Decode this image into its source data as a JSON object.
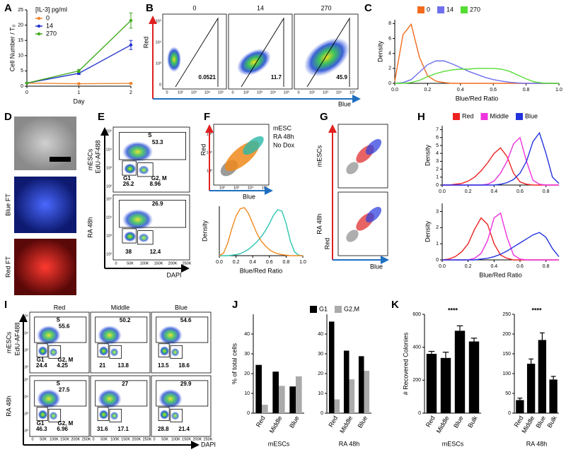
{
  "panel_labels": [
    "A",
    "B",
    "C",
    "D",
    "E",
    "F",
    "G",
    "H",
    "I",
    "J",
    "K"
  ],
  "chart_data": [
    {
      "type": "line",
      "ylabel": "Cell Number / T₀",
      "xlabel": "Day",
      "legend": "upper-left",
      "legend_title": "[IL-3] pg/ml",
      "markers": true,
      "x": [
        0,
        1,
        2
      ],
      "xlim": [
        0,
        2
      ],
      "xticks": [
        0,
        1,
        2
      ],
      "ylim": [
        0,
        25
      ],
      "yticks": [
        0,
        5,
        10,
        15,
        20,
        25
      ],
      "series": [
        {
          "name": "0",
          "color": "#f0852d",
          "values": [
            1,
            0.8,
            0.9
          ],
          "errors": [
            0.1,
            0.1,
            0.1
          ]
        },
        {
          "name": "14",
          "color": "#2233cc",
          "values": [
            1,
            4.2,
            13.5
          ],
          "errors": [
            0.1,
            0.4,
            1.5
          ]
        },
        {
          "name": "270",
          "color": "#44aa22",
          "values": [
            1,
            5,
            21.5
          ],
          "errors": [
            0.1,
            0.5,
            2.5
          ]
        }
      ]
    },
    {
      "type": "line",
      "ylabel": "Density",
      "xlabel": "Blue/Red Ratio",
      "legend": "top",
      "x": [
        0,
        0.05,
        0.1,
        0.15,
        0.2,
        0.25,
        0.3,
        0.35,
        0.4,
        0.45,
        0.5,
        0.55,
        0.6,
        0.65,
        0.7,
        0.75,
        0.8,
        0.85,
        0.9,
        0.95,
        1
      ],
      "xlim": [
        0,
        1
      ],
      "xticks": [
        {
          "value": 0,
          "label": "0.0"
        },
        0.2,
        0.4,
        0.6,
        0.8,
        {
          "value": 1,
          "label": "1.0"
        }
      ],
      "ylim": [
        0,
        8.5
      ],
      "yticks": [
        0,
        2,
        4,
        6,
        8
      ],
      "series": [
        {
          "name": "0",
          "color": "#f26b1d",
          "values": [
            0.3,
            6.5,
            7.9,
            3.5,
            1.0,
            0.3,
            0.1,
            0,
            0,
            0,
            0,
            0,
            0,
            0,
            0,
            0,
            0,
            0,
            0,
            0,
            0
          ]
        },
        {
          "name": "14",
          "color": "#6f6fee",
          "values": [
            0,
            0.1,
            0.5,
            1.5,
            2.5,
            3.0,
            3.0,
            2.6,
            2.1,
            1.6,
            1.2,
            0.8,
            0.5,
            0.3,
            0.15,
            0.05,
            0,
            0,
            0,
            0,
            0
          ]
        },
        {
          "name": "270",
          "color": "#55dd33",
          "values": [
            0,
            0,
            0.1,
            0.4,
            0.9,
            1.3,
            1.6,
            1.8,
            1.9,
            1.9,
            2.0,
            2.0,
            2.0,
            1.9,
            1.6,
            1.1,
            0.6,
            0.2,
            0.05,
            0,
            0
          ]
        }
      ]
    },
    {
      "type": "line",
      "ylabel": "Density",
      "xlabel": "Blue/Red Ratio",
      "x": [
        0,
        0.05,
        0.1,
        0.15,
        0.2,
        0.25,
        0.3,
        0.35,
        0.4,
        0.45,
        0.5,
        0.55,
        0.6,
        0.65,
        0.7,
        0.75,
        0.8,
        0.85,
        0.9,
        0.95,
        1
      ],
      "xlim": [
        0,
        1
      ],
      "xticks": [
        {
          "value": 0,
          "label": "0.0"
        },
        0.2,
        0.4,
        0.6,
        0.8,
        {
          "value": 1,
          "label": "1.0"
        }
      ],
      "ylim": [
        0,
        1
      ],
      "series": [
        {
          "color": "#2ec4b0",
          "values": [
            0,
            0,
            0,
            0.01,
            0.02,
            0.04,
            0.08,
            0.13,
            0.2,
            0.28,
            0.38,
            0.5,
            0.65,
            0.82,
            0.93,
            0.9,
            0.65,
            0.3,
            0.08,
            0.01,
            0
          ]
        },
        {
          "color": "#f08a1c",
          "values": [
            0,
            0.05,
            0.25,
            0.55,
            0.8,
            0.95,
            0.97,
            0.85,
            0.65,
            0.45,
            0.3,
            0.2,
            0.12,
            0.07,
            0.04,
            0.02,
            0.01,
            0,
            0,
            0,
            0
          ]
        }
      ]
    },
    {
      "type": "line",
      "ylabel": "Density",
      "legend": "top",
      "x": [
        0,
        0.05,
        0.1,
        0.15,
        0.2,
        0.25,
        0.3,
        0.35,
        0.4,
        0.45,
        0.5,
        0.55,
        0.6,
        0.65,
        0.7,
        0.75,
        0.8,
        0.85,
        0.9
      ],
      "xlim": [
        0,
        0.9
      ],
      "xticks": [
        {
          "value": 0,
          "label": "0.0"
        },
        0.2,
        0.4,
        0.6,
        0.8
      ],
      "ylim": [
        0,
        7.5
      ],
      "yticks": [
        0,
        1,
        2,
        3,
        4,
        5,
        6,
        7
      ],
      "series": [
        {
          "name": "Red",
          "color": "#ee2222",
          "values": [
            0,
            0,
            0.1,
            0.2,
            0.5,
            1.0,
            1.8,
            2.8,
            4.0,
            4.7,
            3.6,
            1.5,
            0.4,
            0.1,
            0,
            0,
            0,
            0,
            0
          ]
        },
        {
          "name": "Middle",
          "color": "#ee33dd",
          "values": [
            0,
            0,
            0,
            0,
            0,
            0,
            0,
            0.1,
            0.5,
            1.5,
            3.0,
            5.2,
            6.0,
            3.0,
            0.6,
            0.1,
            0,
            0,
            0
          ]
        },
        {
          "name": "Blue",
          "color": "#2233dd",
          "values": [
            0,
            0,
            0,
            0,
            0,
            0,
            0,
            0,
            0,
            0.1,
            0.3,
            0.7,
            1.5,
            3.0,
            5.5,
            6.6,
            4.0,
            1.0,
            0.2
          ]
        }
      ]
    },
    {
      "type": "line",
      "ylabel": "Density",
      "xlabel": "Blue/Red Ratio",
      "x": [
        0,
        0.05,
        0.1,
        0.15,
        0.2,
        0.25,
        0.3,
        0.35,
        0.4,
        0.45,
        0.5,
        0.55,
        0.6,
        0.65,
        0.7,
        0.75,
        0.8,
        0.85,
        0.9
      ],
      "xlim": [
        0,
        0.9
      ],
      "xticks": [
        {
          "value": 0,
          "label": "0.0"
        },
        0.2,
        0.4,
        0.6,
        0.8
      ],
      "ylim": [
        0,
        3.5
      ],
      "yticks": [
        0,
        1,
        2,
        3
      ],
      "series": [
        {
          "color": "#ee2222",
          "values": [
            0,
            0.05,
            0.2,
            0.5,
            1.0,
            1.9,
            2.6,
            2.2,
            1.0,
            0.3,
            0.1,
            0,
            0,
            0,
            0,
            0,
            0,
            0,
            0
          ]
        },
        {
          "color": "#ee33dd",
          "values": [
            0,
            0,
            0,
            0,
            0,
            0.1,
            0.4,
            1.2,
            2.6,
            2.9,
            1.4,
            0.3,
            0.05,
            0,
            0,
            0,
            0,
            0,
            0
          ]
        },
        {
          "color": "#2233dd",
          "values": [
            0,
            0,
            0,
            0,
            0,
            0,
            0.05,
            0.1,
            0.2,
            0.35,
            0.55,
            0.8,
            1.05,
            1.3,
            1.55,
            1.7,
            1.4,
            0.7,
            0.2
          ]
        }
      ]
    },
    {
      "type": "bar",
      "ylabel": "% of total cells",
      "xlabel": "mESCs",
      "legend": "top",
      "categories": [
        "Red",
        "Middle",
        "Blue"
      ],
      "ylim": [
        0,
        50
      ],
      "yticks": [
        0,
        10,
        20,
        30,
        40
      ],
      "series": [
        {
          "name": "G1",
          "color": "#000000",
          "values": [
            24.4,
            21,
            13.5
          ]
        },
        {
          "name": "G2,M",
          "color": "#aaaaaa",
          "values": [
            4.25,
            13.8,
            18.6
          ]
        }
      ]
    },
    {
      "type": "bar",
      "xlabel": "RA 48h",
      "categories": [
        "Red",
        "Middle",
        "Blue"
      ],
      "ylim": [
        0,
        50
      ],
      "yticks": [
        0,
        10,
        20,
        30,
        40
      ],
      "series": [
        {
          "color": "#000000",
          "values": [
            46.3,
            31.6,
            28.8
          ]
        },
        {
          "color": "#aaaaaa",
          "values": [
            6.96,
            17.1,
            21.4
          ]
        }
      ]
    },
    {
      "type": "bar",
      "ylabel": "# Recovered Colonies",
      "xlabel": "mESCs",
      "annotation": "****",
      "categories": [
        "Red",
        "Middle",
        "Blue",
        "Bulk"
      ],
      "ylim": [
        0,
        600
      ],
      "yticks": [
        0,
        200,
        400,
        600
      ],
      "series": [
        {
          "color": "#000000",
          "values": [
            360,
            335,
            500,
            435
          ],
          "errors": [
            15,
            35,
            30,
            20
          ]
        }
      ]
    },
    {
      "type": "bar",
      "xlabel": "RA 48h",
      "annotation": "****",
      "categories": [
        "Red",
        "Middle",
        "Blue",
        "Bulk"
      ],
      "ylim": [
        0,
        250
      ],
      "yticks": [
        0,
        50,
        100,
        150,
        200,
        250
      ],
      "series": [
        {
          "color": "#000000",
          "values": [
            33,
            125,
            185,
            85
          ],
          "errors": [
            5,
            12,
            18,
            8
          ]
        }
      ]
    }
  ],
  "flow_B": {
    "y_label": "Red",
    "x_label": "Blue",
    "yticks": [
      "0",
      "10³",
      "10⁴",
      "10⁵"
    ],
    "xticks": [
      "0",
      "10²",
      "10³",
      "10⁴",
      "10⁵"
    ],
    "plots": [
      {
        "title": "0",
        "gate": 0.0521
      },
      {
        "title": "14",
        "gate": 11.7
      },
      {
        "title": "270",
        "gate": 45.9
      }
    ]
  },
  "images_D": {
    "labels": [
      "Blue FT",
      "Red FT"
    ]
  },
  "flow_E": {
    "y_label": "EdU-AF488",
    "x_label": "DAPI",
    "rows": [
      "mESCs",
      "RA 48h"
    ],
    "gate_names": [
      "S",
      "G1",
      "G2, M"
    ],
    "xticks": [
      "0",
      "50K",
      "100K",
      "150K",
      "200K",
      "250K"
    ],
    "yticks": [
      "10²",
      "10³",
      "10⁴",
      "10⁵"
    ],
    "plots": [
      [
        53.3,
        26.2,
        8.96
      ],
      [
        26.9,
        38,
        12.4
      ]
    ]
  },
  "scatter_F": {
    "y_label": "Red",
    "x_label": "Blue",
    "yticks": [
      "10³",
      "10⁴",
      "10⁵"
    ],
    "xticks": [
      "10²",
      "10³",
      "10⁴",
      "10⁵"
    ],
    "legend": [
      {
        "name": "mESC",
        "color": "#2ab8a8"
      },
      {
        "name": "RA 48h",
        "color": "#f08a1c"
      },
      {
        "name": "No Dox",
        "color": "#888888"
      }
    ]
  },
  "scatter_G": {
    "y_label": "Red",
    "x_label": "Blue",
    "rows": [
      "mESCs",
      "RA 48h"
    ]
  },
  "flow_I": {
    "y_label": "EdU-AF488",
    "x_label": "DAPI",
    "rows": [
      "mESCs",
      "RA 48h"
    ],
    "gate_names": [
      "S",
      "G1",
      "G2, M"
    ],
    "columns": [
      {
        "name": "Red",
        "color": "#ee2222"
      },
      {
        "name": "Middle",
        "color": "#ee33dd"
      },
      {
        "name": "Blue",
        "color": "#3344dd"
      }
    ],
    "xticks": [
      "0",
      "50K",
      "100K",
      "150K",
      "200K",
      "250K"
    ],
    "yticks": [
      "10²",
      "10³",
      "10⁴",
      "10⁵"
    ],
    "plots": [
      [
        [
          55.6,
          24.4,
          4.25
        ],
        [
          50.2,
          21,
          13.8
        ],
        [
          54.6,
          13.5,
          18.6
        ]
      ],
      [
        [
          27.5,
          46.3,
          6.96
        ],
        [
          27,
          31.6,
          17.1
        ],
        [
          29.9,
          28.8,
          21.4
        ]
      ]
    ]
  }
}
